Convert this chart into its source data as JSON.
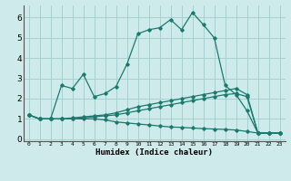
{
  "xlabel": "Humidex (Indice chaleur)",
  "background_color": "#ceeaea",
  "grid_color": "#a8d0d0",
  "line_color": "#1a7a6e",
  "xlim": [
    -0.5,
    23.5
  ],
  "ylim": [
    -0.1,
    6.6
  ],
  "xtick_labels": [
    "0",
    "1",
    "2",
    "3",
    "4",
    "5",
    "6",
    "7",
    "8",
    "9",
    "10",
    "11",
    "12",
    "13",
    "14",
    "15",
    "16",
    "17",
    "18",
    "19",
    "20",
    "21",
    "22",
    "23"
  ],
  "ytick_values": [
    0,
    1,
    2,
    3,
    4,
    5,
    6
  ],
  "series": [
    {
      "x": [
        0,
        1,
        2,
        3,
        4,
        5,
        6,
        7,
        8,
        9,
        10,
        11,
        12,
        13,
        14,
        15,
        16,
        17,
        18,
        19,
        20,
        21,
        22,
        23
      ],
      "y": [
        1.2,
        1.0,
        1.0,
        2.65,
        2.5,
        3.2,
        2.1,
        2.25,
        2.6,
        3.7,
        5.2,
        5.4,
        5.5,
        5.9,
        5.4,
        6.25,
        5.65,
        5.0,
        2.65,
        2.2,
        1.4,
        0.3,
        0.3,
        0.3
      ]
    },
    {
      "x": [
        0,
        1,
        2,
        3,
        4,
        5,
        6,
        7,
        8,
        9,
        10,
        11,
        12,
        13,
        14,
        15,
        16,
        17,
        18,
        19,
        20,
        21,
        22,
        23
      ],
      "y": [
        1.2,
        1.0,
        1.0,
        1.0,
        1.05,
        1.1,
        1.15,
        1.2,
        1.3,
        1.45,
        1.6,
        1.7,
        1.8,
        1.9,
        2.0,
        2.1,
        2.2,
        2.3,
        2.4,
        2.5,
        2.2,
        0.3,
        0.3,
        0.3
      ]
    },
    {
      "x": [
        0,
        1,
        2,
        3,
        4,
        5,
        6,
        7,
        8,
        9,
        10,
        11,
        12,
        13,
        14,
        15,
        16,
        17,
        18,
        19,
        20,
        21,
        22,
        23
      ],
      "y": [
        1.2,
        1.0,
        1.0,
        1.0,
        1.0,
        1.05,
        1.1,
        1.15,
        1.2,
        1.3,
        1.4,
        1.5,
        1.6,
        1.7,
        1.8,
        1.9,
        2.0,
        2.1,
        2.2,
        2.25,
        2.1,
        0.3,
        0.3,
        0.3
      ]
    },
    {
      "x": [
        0,
        1,
        2,
        3,
        4,
        5,
        6,
        7,
        8,
        9,
        10,
        11,
        12,
        13,
        14,
        15,
        16,
        17,
        18,
        19,
        20,
        21,
        22,
        23
      ],
      "y": [
        1.2,
        1.0,
        1.0,
        1.0,
        1.0,
        1.0,
        1.0,
        0.95,
        0.85,
        0.8,
        0.75,
        0.7,
        0.65,
        0.6,
        0.58,
        0.55,
        0.52,
        0.5,
        0.48,
        0.45,
        0.38,
        0.3,
        0.3,
        0.3
      ]
    }
  ]
}
